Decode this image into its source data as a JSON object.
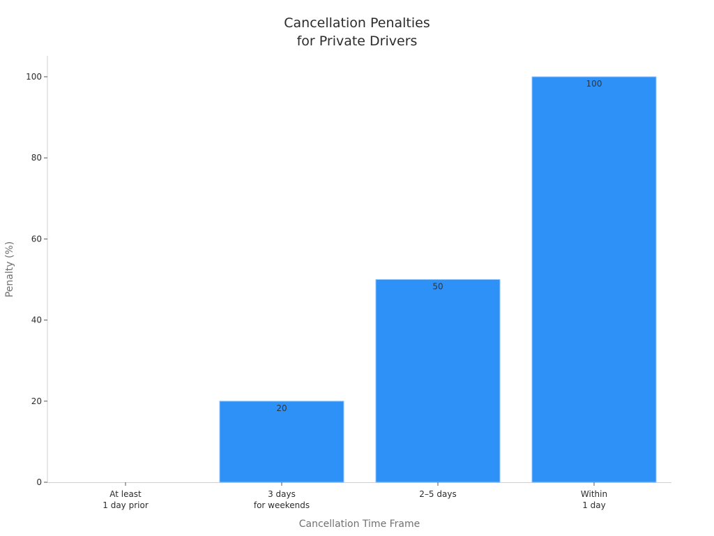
{
  "chart_data": {
    "type": "bar",
    "title": "Cancellation Penalties\nfor Private Drivers",
    "title_lines": [
      "Cancellation Penalties",
      "for Private Drivers"
    ],
    "xlabel": "Cancellation Time Frame",
    "ylabel": "Penalty (%)",
    "categories": [
      "At least\n1 day prior",
      "3 days\nfor weekends",
      "2–5 days",
      "Within\n1 day"
    ],
    "category_lines": [
      [
        "At least",
        "1 day prior"
      ],
      [
        "3 days",
        "for weekends"
      ],
      [
        "2–5 days"
      ],
      [
        "Within",
        "1 day"
      ]
    ],
    "values": [
      0,
      20,
      50,
      100
    ],
    "data_labels": [
      "",
      "20",
      "50",
      "100"
    ],
    "ylim": [
      0,
      105
    ],
    "yticks": [
      0,
      20,
      40,
      60,
      80,
      100
    ],
    "grid": false,
    "legend": null,
    "bar_color": "#2e91f7",
    "bar_edge_color": "#8cc4ff"
  }
}
